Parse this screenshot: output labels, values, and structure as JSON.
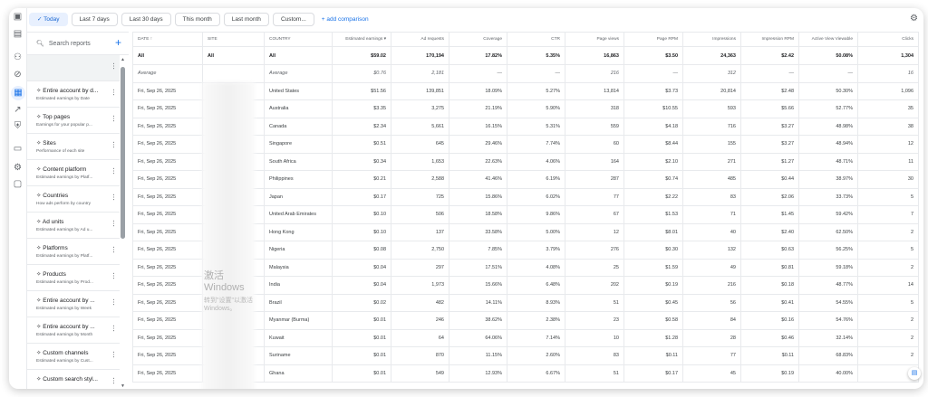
{
  "filters": {
    "chips": [
      "Today",
      "Last 7 days",
      "Last 30 days",
      "This month",
      "Last month",
      "Custom..."
    ],
    "selected": "Today",
    "add_comparison": "add comparison"
  },
  "rail_icons": [
    "page-icon",
    "calendar-icon",
    "user-settings-icon",
    "block-icon",
    "reports-icon",
    "trending-icon",
    "privacy-icon",
    "payments-icon",
    "settings-icon",
    "feedback-icon"
  ],
  "reports": {
    "search_placeholder": "Search reports",
    "items": [
      {
        "title": "",
        "subtitle": ""
      },
      {
        "title": "Entire account by d...",
        "subtitle": "Estimated earnings by Date"
      },
      {
        "title": "Top pages",
        "subtitle": "Earnings for your popular p..."
      },
      {
        "title": "Sites",
        "subtitle": "Performance of each site"
      },
      {
        "title": "Content platform",
        "subtitle": "Estimated earnings by Platf..."
      },
      {
        "title": "Countries",
        "subtitle": "How ads perform by country"
      },
      {
        "title": "Ad units",
        "subtitle": "Estimated earnings by Ad u..."
      },
      {
        "title": "Platforms",
        "subtitle": "Estimated earnings by Platf..."
      },
      {
        "title": "Products",
        "subtitle": "Estimated earnings by Prod..."
      },
      {
        "title": "Entire account by ...",
        "subtitle": "Estimated earnings by Week"
      },
      {
        "title": "Entire account by ...",
        "subtitle": "Estimated earnings by Month"
      },
      {
        "title": "Custom channels",
        "subtitle": "Estimated earnings by Cust..."
      },
      {
        "title": "Custom search styl...",
        "subtitle": ""
      }
    ]
  },
  "table": {
    "headers": [
      "DATE ↑",
      "SITE",
      "COUNTRY",
      "Estimated earnings ▾",
      "Ad requests",
      "Coverage",
      "CTR",
      "Page views",
      "Page RPM",
      "Impressions",
      "Impression RPM",
      "Active View Viewable",
      "Clicks"
    ],
    "all": [
      "All",
      "All",
      "All",
      "$59.02",
      "170,194",
      "17.82%",
      "5.35%",
      "16,863",
      "$3.50",
      "24,363",
      "$2.42",
      "50.08%",
      "1,304"
    ],
    "average": [
      "Average",
      "",
      "Average",
      "$0.76",
      "2,181",
      "—",
      "—",
      "216",
      "—",
      "312",
      "—",
      "—",
      "16"
    ],
    "rows": [
      [
        "Fri, Sep 26, 2025",
        "",
        "United States",
        "$51.56",
        "139,851",
        "18.09%",
        "5.27%",
        "13,814",
        "$3.73",
        "20,814",
        "$2.48",
        "50.30%",
        "1,096"
      ],
      [
        "Fri, Sep 26, 2025",
        "",
        "Australia",
        "$3.35",
        "3,275",
        "21.19%",
        "5.90%",
        "318",
        "$10.55",
        "593",
        "$5.66",
        "52.77%",
        "35"
      ],
      [
        "Fri, Sep 26, 2025",
        "",
        "Canada",
        "$2.34",
        "5,661",
        "16.15%",
        "5.31%",
        "559",
        "$4.18",
        "716",
        "$3.27",
        "48.98%",
        "38"
      ],
      [
        "Fri, Sep 26, 2025",
        "",
        "Singapore",
        "$0.51",
        "645",
        "29.46%",
        "7.74%",
        "60",
        "$8.44",
        "155",
        "$3.27",
        "48.94%",
        "12"
      ],
      [
        "Fri, Sep 26, 2025",
        "",
        "South Africa",
        "$0.34",
        "1,653",
        "22.63%",
        "4.06%",
        "164",
        "$2.10",
        "271",
        "$1.27",
        "48.71%",
        "11"
      ],
      [
        "Fri, Sep 26, 2025",
        "",
        "Philippines",
        "$0.21",
        "2,588",
        "41.46%",
        "6.19%",
        "287",
        "$0.74",
        "485",
        "$0.44",
        "38.97%",
        "30"
      ],
      [
        "Fri, Sep 26, 2025",
        "",
        "Japan",
        "$0.17",
        "725",
        "15.86%",
        "6.02%",
        "77",
        "$2.22",
        "83",
        "$2.06",
        "33.73%",
        "5"
      ],
      [
        "Fri, Sep 26, 2025",
        "",
        "United Arab Emirates",
        "$0.10",
        "506",
        "18.58%",
        "9.86%",
        "67",
        "$1.53",
        "71",
        "$1.45",
        "59.42%",
        "7"
      ],
      [
        "Fri, Sep 26, 2025",
        "",
        "Hong Kong",
        "$0.10",
        "137",
        "33.58%",
        "5.00%",
        "12",
        "$8.01",
        "40",
        "$2.40",
        "62.50%",
        "2"
      ],
      [
        "Fri, Sep 26, 2025",
        "",
        "Nigeria",
        "$0.08",
        "2,750",
        "7.85%",
        "3.79%",
        "276",
        "$0.30",
        "132",
        "$0.63",
        "56.25%",
        "5"
      ],
      [
        "Fri, Sep 26, 2025",
        "",
        "Malaysia",
        "$0.04",
        "297",
        "17.51%",
        "4.08%",
        "25",
        "$1.59",
        "49",
        "$0.81",
        "59.18%",
        "2"
      ],
      [
        "Fri, Sep 26, 2025",
        "",
        "India",
        "$0.04",
        "1,973",
        "15.66%",
        "6.48%",
        "202",
        "$0.19",
        "216",
        "$0.18",
        "48.77%",
        "14"
      ],
      [
        "Fri, Sep 26, 2025",
        "",
        "Brazil",
        "$0.02",
        "482",
        "14.11%",
        "8.93%",
        "51",
        "$0.45",
        "56",
        "$0.41",
        "54.55%",
        "5"
      ],
      [
        "Fri, Sep 26, 2025",
        "",
        "Myanmar (Burma)",
        "$0.01",
        "246",
        "38.62%",
        "2.38%",
        "23",
        "$0.58",
        "84",
        "$0.16",
        "54.76%",
        "2"
      ],
      [
        "Fri, Sep 26, 2025",
        "",
        "Kuwait",
        "$0.01",
        "64",
        "64.06%",
        "7.14%",
        "10",
        "$1.28",
        "28",
        "$0.46",
        "32.14%",
        "2"
      ],
      [
        "Fri, Sep 26, 2025",
        "",
        "Suriname",
        "$0.01",
        "870",
        "11.15%",
        "2.60%",
        "83",
        "$0.11",
        "77",
        "$0.11",
        "68.83%",
        "2"
      ],
      [
        "Fri, Sep 26, 2025",
        "",
        "Ghana",
        "$0.01",
        "549",
        "12.93%",
        "6.67%",
        "51",
        "$0.17",
        "45",
        "$0.19",
        "40.00%",
        ""
      ]
    ]
  },
  "watermark": {
    "line1": "激活 Windows",
    "line2": "转到\"设置\"以激活 Windows。"
  },
  "colors": {
    "accent": "#1a73e8",
    "selected_chip_bg": "#e8f0fe"
  }
}
